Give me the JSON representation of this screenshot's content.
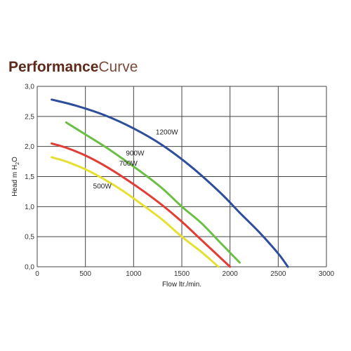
{
  "title": {
    "bold": "Performance",
    "light": "Curve"
  },
  "chart_data": {
    "type": "line",
    "xlabel": "Flow ltr./min.",
    "ylabel_main": "Head m H",
    "ylabel_sub": "2",
    "ylabel_end": "O",
    "xlim": [
      0,
      3000
    ],
    "ylim": [
      0,
      3.0
    ],
    "grid": true,
    "x_ticks": [
      0,
      500,
      1000,
      1500,
      2000,
      2500,
      3000
    ],
    "x_tick_labels": [
      "0",
      "500",
      "1000",
      "1500",
      "2000",
      "2500",
      "3000"
    ],
    "y_ticks": [
      0,
      0.5,
      1.0,
      1.5,
      2.0,
      2.5,
      3.0
    ],
    "y_tick_labels": [
      "0,0",
      "0,5",
      "1,0",
      "1,5",
      "2,0",
      "2,5",
      "3,0"
    ],
    "series": [
      {
        "name": "1200W",
        "color": "#2e4d9a",
        "label_at": [
          1230,
          2.2
        ],
        "x": [
          150,
          400,
          700,
          1000,
          1300,
          1600,
          1900,
          2100,
          2300,
          2500,
          2600
        ],
        "y": [
          2.78,
          2.68,
          2.52,
          2.3,
          2.02,
          1.66,
          1.23,
          0.9,
          0.58,
          0.22,
          0.0
        ]
      },
      {
        "name": "900W",
        "color": "#6bbf44",
        "label_at": [
          920,
          1.85
        ],
        "x": [
          300,
          500,
          700,
          900,
          1100,
          1300,
          1500,
          1700,
          1900,
          2100
        ],
        "y": [
          2.4,
          2.2,
          2.0,
          1.78,
          1.55,
          1.3,
          1.0,
          0.73,
          0.4,
          0.07
        ]
      },
      {
        "name": "700W",
        "color": "#e23c35",
        "label_at": [
          850,
          1.68
        ],
        "x": [
          150,
          300,
          500,
          700,
          900,
          1100,
          1300,
          1500,
          1700,
          1900,
          2000
        ],
        "y": [
          2.05,
          1.98,
          1.85,
          1.68,
          1.48,
          1.26,
          1.02,
          0.75,
          0.45,
          0.15,
          0.0
        ]
      },
      {
        "name": "500W",
        "color": "#e5e032",
        "label_at": [
          580,
          1.3
        ],
        "x": [
          150,
          300,
          500,
          700,
          900,
          1100,
          1300,
          1500,
          1700,
          1880
        ],
        "y": [
          1.82,
          1.75,
          1.62,
          1.45,
          1.25,
          1.02,
          0.78,
          0.5,
          0.25,
          0.0
        ]
      }
    ]
  }
}
